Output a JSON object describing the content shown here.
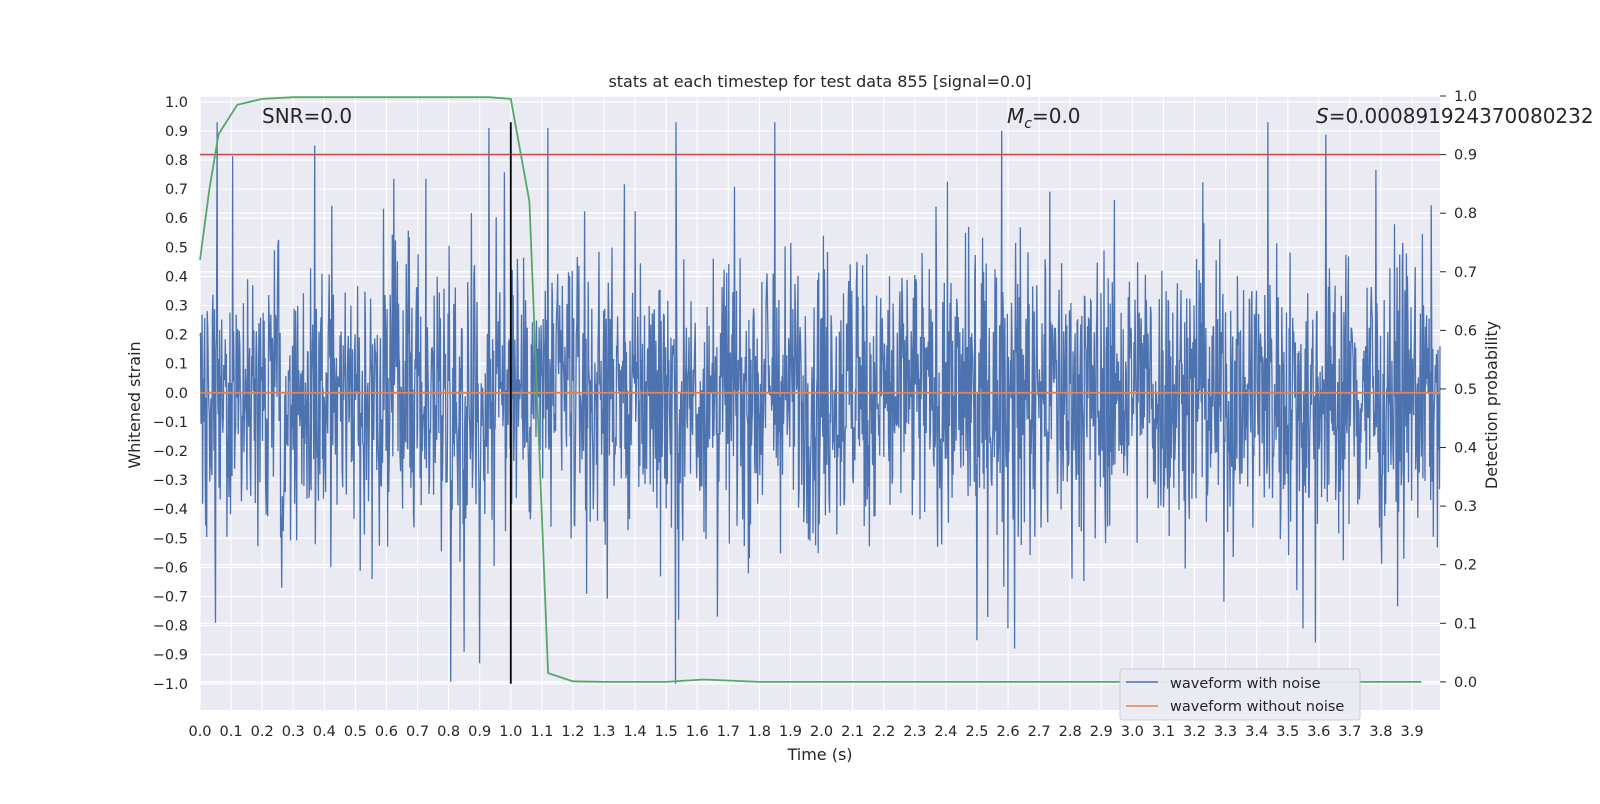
{
  "chart_data": {
    "type": "line",
    "title": "stats at each timestep for test data 855 [signal=0.0]",
    "xlabel": "Time (s)",
    "ylabel": "Whitened strain",
    "y2label": "Detection probability",
    "xlim": [
      0.0,
      3.99
    ],
    "ylim": [
      -1.09,
      1.02
    ],
    "y2lim": [
      -0.048,
      1.0
    ],
    "xticks": [
      "0.0",
      "0.1",
      "0.2",
      "0.3",
      "0.4",
      "0.5",
      "0.6",
      "0.7",
      "0.8",
      "0.9",
      "1.0",
      "1.1",
      "1.2",
      "1.3",
      "1.4",
      "1.5",
      "1.6",
      "1.7",
      "1.8",
      "1.9",
      "2.0",
      "2.1",
      "2.2",
      "2.3",
      "2.4",
      "2.5",
      "2.6",
      "2.7",
      "2.8",
      "2.9",
      "3.0",
      "3.1",
      "3.2",
      "3.3",
      "3.4",
      "3.5",
      "3.6",
      "3.7",
      "3.8",
      "3.9"
    ],
    "yticks": [
      "1.0",
      "0.9",
      "0.8",
      "0.7",
      "0.6",
      "0.5",
      "0.4",
      "0.3",
      "0.2",
      "0.1",
      "0.0",
      "−0.1",
      "−0.2",
      "−0.3",
      "−0.4",
      "−0.5",
      "−0.6",
      "−0.7",
      "−0.8",
      "−0.9",
      "−1.0"
    ],
    "y2ticks": [
      "0.0",
      "0.1",
      "0.2",
      "0.3",
      "0.4",
      "0.5",
      "0.6",
      "0.7",
      "0.8",
      "0.9",
      "1.0"
    ],
    "annotations": {
      "snr": "SNR=0.0",
      "mc_symbol": "M",
      "mc_sub": "c",
      "mc_value": "=0.0",
      "s_symbol": "S",
      "s_value": "=0.000891924370080232"
    },
    "series": [
      {
        "name": "waveform with noise",
        "color": "#4c72b0",
        "axis": "left",
        "noise_amplitude_range": [
          -1.0,
          0.93
        ],
        "peaks": [
          [
            0.37,
            0.85
          ],
          [
            0.93,
            0.91
          ],
          [
            1.12,
            0.91
          ],
          [
            1.85,
            0.93
          ],
          [
            2.58,
            0.9
          ],
          [
            1.53,
            -1.0
          ],
          [
            0.85,
            -0.89
          ],
          [
            0.9,
            -0.93
          ],
          [
            0.05,
            -0.79
          ],
          [
            2.5,
            -0.85
          ],
          [
            3.55,
            -0.81
          ],
          [
            2.6,
            -0.81
          ]
        ]
      },
      {
        "name": "waveform without noise",
        "color": "#dd8452",
        "axis": "left",
        "x": [
          0.0,
          3.99
        ],
        "values": [
          0.0,
          0.0
        ]
      },
      {
        "name": "detection probability",
        "color": "#55a868",
        "axis": "right",
        "x": [
          0.0,
          0.03,
          0.06,
          0.12,
          0.2,
          0.3,
          0.5,
          0.7,
          0.93,
          1.0,
          1.06,
          1.12,
          1.2,
          1.3,
          1.5,
          1.62,
          1.8,
          2.0,
          2.5,
          3.0,
          3.5,
          3.93
        ],
        "values": [
          0.72,
          0.84,
          0.935,
          0.985,
          0.995,
          0.998,
          0.998,
          0.998,
          0.998,
          0.995,
          0.82,
          0.015,
          0.001,
          0.0,
          0.0,
          0.004,
          0.0,
          0.0,
          0.0,
          0.0,
          0.0,
          0.0
        ]
      }
    ],
    "threshold": {
      "color": "#c44e52",
      "axis": "right",
      "value": 0.9
    },
    "marker_line": {
      "color": "#000000",
      "x": 1.0,
      "y_range": [
        -1.0,
        0.93
      ]
    },
    "legend": {
      "placement": "lower-right",
      "entries": [
        "waveform with noise",
        "waveform without noise"
      ]
    },
    "grid": true,
    "background": "#eaeaf2"
  }
}
